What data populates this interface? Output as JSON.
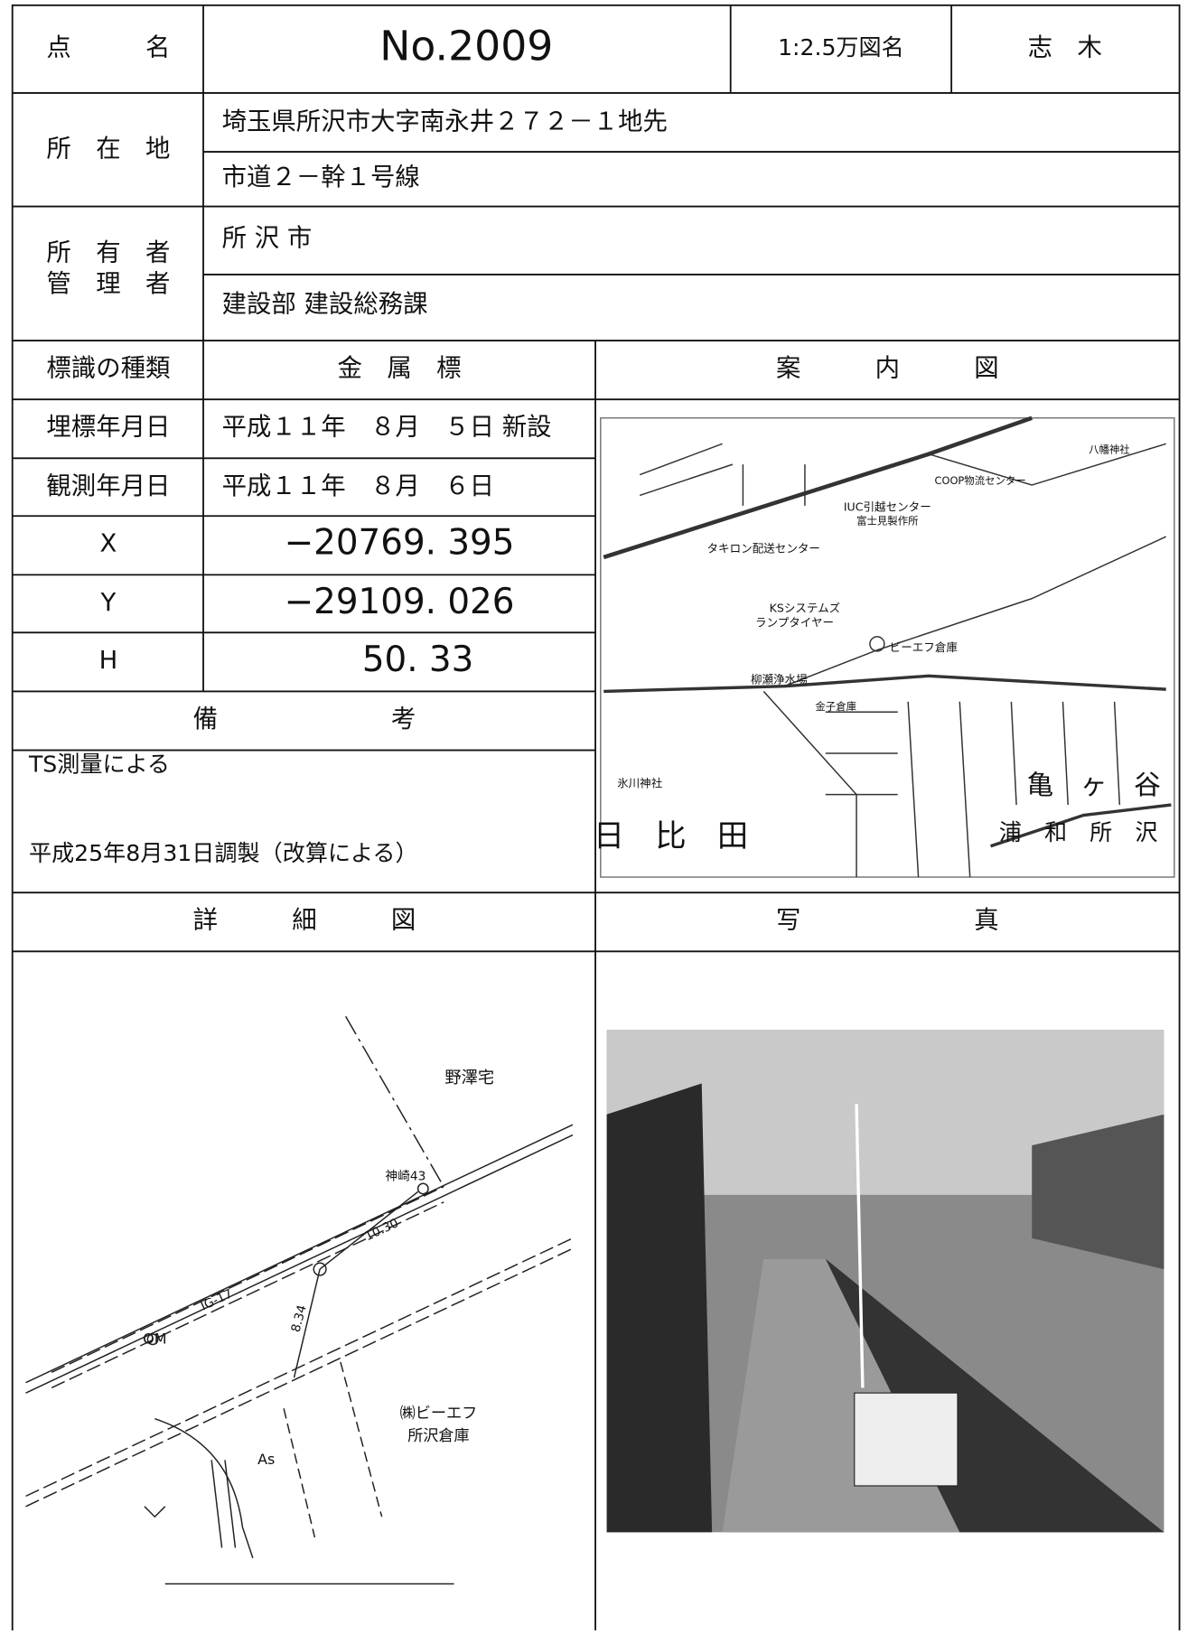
{
  "header": {
    "point_label": "点　　　名",
    "point_name": "No.2009",
    "map_label": "1:2.5万図名",
    "map_name": "志　木"
  },
  "location": {
    "label": "所　在　地",
    "address": "埼玉県所沢市大字南永井２７２－１地先",
    "road": "市道２－幹１号線"
  },
  "owner": {
    "owner_label": "所　有　者",
    "manager_label": "管　理　者",
    "owner": "所 沢 市",
    "manager": "建設部 建設総務課"
  },
  "marker": {
    "label": "標識の種類",
    "value": "金　属　標"
  },
  "guide_map": {
    "title": "案　　　内　　　図",
    "labels": [
      "八幡神社",
      "COOP物流センター",
      "IUC引越センター",
      "富士見製作所",
      "タキロン配送センター",
      "KSシステムズ",
      "ランプタイヤー",
      "ビーエフ倉庫",
      "柳瀬浄水場",
      "金子倉庫",
      "氷川神社",
      "亀　ヶ　谷",
      "日　比　田",
      "浦　和　所　沢"
    ]
  },
  "rows": [
    [
      "埋標年月日",
      "平成１１年　８月　５日 新設"
    ],
    [
      "観測年月日",
      "平成１１年　８月　６日"
    ],
    [
      "X",
      "−20769. 395"
    ],
    [
      "Y",
      "−29109. 026"
    ],
    [
      "H",
      "50. 33"
    ]
  ],
  "remarks": {
    "title": "備　　　　　　　考",
    "lines": [
      "TS測量による",
      "平成25年8月31日調製（改算による）"
    ]
  },
  "detail": {
    "title": "詳　　　細　　　図",
    "labels": [
      "野澤宅",
      "神崎43",
      "10.30",
      "IG-17",
      "8.34",
      "OM",
      "As",
      "㈱ビーエフ",
      "所沢倉庫"
    ]
  },
  "photo": {
    "title": "写　　　　　　　真"
  }
}
